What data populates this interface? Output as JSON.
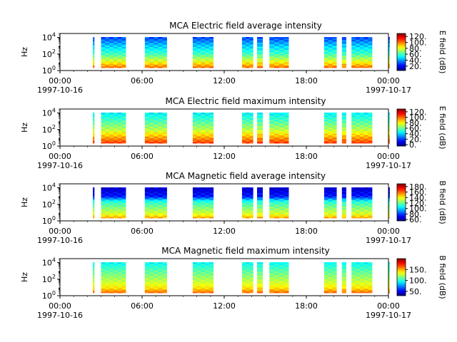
{
  "figure": {
    "background": "#ffffff"
  },
  "chart_data": [
    {
      "type": "heatmap",
      "title": "MCA  Electric field average intensity",
      "ylabel": "Hz",
      "ylog": true,
      "ylim": [
        1,
        30000
      ],
      "ytick_labels": [
        "10^0",
        "10^2",
        "10^4"
      ],
      "xlim_hours": [
        0,
        24
      ],
      "xtick_labels": [
        "00:00",
        "06:00",
        "12:00",
        "18:00",
        "00:00"
      ],
      "xtick_dates": [
        "1997-10-16",
        "",
        "",
        "",
        "1997-10-17"
      ],
      "colorbar": {
        "label": "E field (dB)",
        "tick_labels": [
          "20.",
          "40.",
          "60.",
          "80.",
          "100.",
          "120."
        ],
        "range": [
          5,
          130
        ]
      },
      "data_intervals_hours": [
        [
          2.4,
          2.5
        ],
        [
          3.0,
          4.8
        ],
        [
          6.2,
          7.8
        ],
        [
          9.7,
          11.2
        ],
        [
          13.3,
          14.1
        ],
        [
          14.4,
          14.8
        ],
        [
          15.3,
          16.7
        ],
        [
          19.3,
          20.2
        ],
        [
          20.6,
          20.9
        ],
        [
          21.3,
          22.8
        ],
        [
          24.0,
          24.05
        ]
      ],
      "intensity_levels_by_height": [
        [
          0.0,
          100
        ],
        [
          0.2,
          80
        ],
        [
          0.45,
          60
        ],
        [
          0.75,
          45
        ],
        [
          1.0,
          30
        ]
      ]
    },
    {
      "type": "heatmap",
      "title": "MCA  Electric field maximum intensity",
      "ylabel": "Hz",
      "ylog": true,
      "ylim": [
        1,
        30000
      ],
      "ytick_labels": [
        "10^0",
        "10^2",
        "10^4"
      ],
      "xlim_hours": [
        0,
        24
      ],
      "xtick_labels": [
        "00:00",
        "06:00",
        "12:00",
        "18:00",
        "00:00"
      ],
      "xtick_dates": [
        "1997-10-16",
        "",
        "",
        "",
        "1997-10-17"
      ],
      "colorbar": {
        "label": "E field (dB)",
        "tick_labels": [
          "0.",
          "20.",
          "40.",
          "60.",
          "80.",
          "100.",
          "120."
        ],
        "range": [
          -5,
          130
        ]
      },
      "data_intervals_hours": [
        [
          2.4,
          2.5
        ],
        [
          3.0,
          4.8
        ],
        [
          6.2,
          7.8
        ],
        [
          9.7,
          11.2
        ],
        [
          13.3,
          14.1
        ],
        [
          14.4,
          14.8
        ],
        [
          15.3,
          16.7
        ],
        [
          19.3,
          20.2
        ],
        [
          20.6,
          20.9
        ],
        [
          21.3,
          22.8
        ],
        [
          24.0,
          24.05
        ]
      ],
      "intensity_levels_by_height": [
        [
          0.0,
          105
        ],
        [
          0.2,
          90
        ],
        [
          0.45,
          70
        ],
        [
          0.75,
          55
        ],
        [
          1.0,
          45
        ]
      ]
    },
    {
      "type": "heatmap",
      "title": "MCA  Magnetic field average intensity",
      "ylabel": "Hz",
      "ylog": true,
      "ylim": [
        1,
        30000
      ],
      "ytick_labels": [
        "10^0",
        "10^2",
        "10^4"
      ],
      "xlim_hours": [
        0,
        24
      ],
      "xtick_labels": [
        "00:00",
        "06:00",
        "12:00",
        "18:00",
        "00:00"
      ],
      "xtick_dates": [
        "1997-10-16",
        "",
        "",
        "",
        "1997-10-17"
      ],
      "colorbar": {
        "label": "B field (dB)",
        "tick_labels": [
          "60.",
          "80.",
          "100.",
          "120.",
          "140.",
          "160.",
          "180."
        ],
        "range": [
          55,
          190
        ]
      },
      "data_intervals_hours": [
        [
          2.4,
          2.5
        ],
        [
          3.0,
          4.8
        ],
        [
          6.2,
          7.8
        ],
        [
          9.7,
          11.2
        ],
        [
          13.3,
          14.1
        ],
        [
          14.4,
          14.8
        ],
        [
          15.3,
          16.7
        ],
        [
          19.3,
          20.2
        ],
        [
          20.6,
          20.9
        ],
        [
          21.3,
          22.8
        ],
        [
          24.0,
          24.05
        ]
      ],
      "intensity_levels_by_height": [
        [
          0.0,
          150
        ],
        [
          0.12,
          135
        ],
        [
          0.3,
          125
        ],
        [
          0.55,
          110
        ],
        [
          0.72,
          75
        ],
        [
          1.0,
          65
        ]
      ]
    },
    {
      "type": "heatmap",
      "title": "MCA  Magnetic field maximum intensity",
      "ylabel": "Hz",
      "ylog": true,
      "ylim": [
        1,
        30000
      ],
      "ytick_labels": [
        "10^0",
        "10^2",
        "10^4"
      ],
      "xlim_hours": [
        0,
        24
      ],
      "xtick_labels": [
        "00:00",
        "06:00",
        "12:00",
        "18:00",
        "00:00"
      ],
      "xtick_dates": [
        "1997-10-16",
        "",
        "",
        "",
        "1997-10-17"
      ],
      "colorbar": {
        "label": "B field (dB)",
        "tick_labels": [
          "50.",
          "100.",
          "150."
        ],
        "range": [
          30,
          200
        ]
      },
      "data_intervals_hours": [
        [
          2.4,
          2.5
        ],
        [
          3.0,
          4.8
        ],
        [
          6.2,
          7.8
        ],
        [
          9.7,
          11.2
        ],
        [
          13.3,
          14.1
        ],
        [
          14.4,
          14.8
        ],
        [
          15.3,
          16.7
        ],
        [
          19.3,
          20.2
        ],
        [
          20.6,
          20.9
        ],
        [
          21.3,
          22.8
        ],
        [
          24.0,
          24.05
        ]
      ],
      "intensity_levels_by_height": [
        [
          0.0,
          160
        ],
        [
          0.15,
          140
        ],
        [
          0.4,
          125
        ],
        [
          0.7,
          110
        ],
        [
          1.0,
          95
        ]
      ]
    }
  ]
}
